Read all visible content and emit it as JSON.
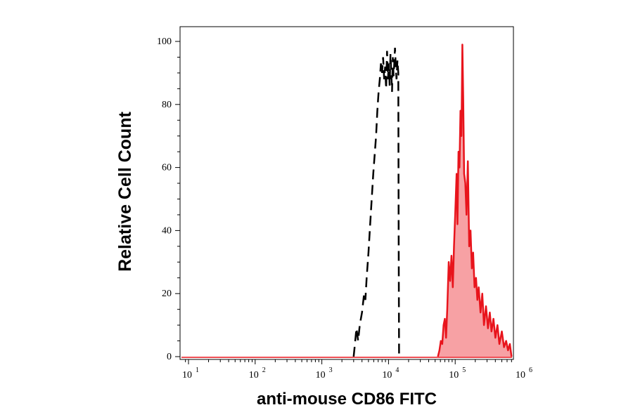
{
  "chart_data": {
    "type": "histogram",
    "title": "",
    "xlabel": "anti-mouse CD86 FITC",
    "ylabel": "Relative Cell Count",
    "x_scale": "log",
    "xlim": [
      10,
      1000000
    ],
    "ylim": [
      0,
      100
    ],
    "x_ticks": [
      {
        "base": "10",
        "exp": "1",
        "value": 10
      },
      {
        "base": "10",
        "exp": "2",
        "value": 100
      },
      {
        "base": "10",
        "exp": "3",
        "value": 1000
      },
      {
        "base": "10",
        "exp": "4",
        "value": 10000
      },
      {
        "base": "10",
        "exp": "5",
        "value": 100000
      },
      {
        "base": "10",
        "exp": "6",
        "value": 1000000
      }
    ],
    "y_ticks": [
      "0",
      "20",
      "40",
      "60",
      "80",
      "100"
    ],
    "y_tick_values": [
      0,
      20,
      40,
      60,
      80,
      100
    ],
    "grid": false,
    "series": [
      {
        "style": "dashed-outline",
        "color": "#000000",
        "points": [
          [
            3000,
            0
          ],
          [
            3100,
            3
          ],
          [
            3300,
            9
          ],
          [
            3500,
            5
          ],
          [
            3700,
            10
          ],
          [
            4000,
            14
          ],
          [
            4300,
            20
          ],
          [
            4500,
            18
          ],
          [
            4700,
            25
          ],
          [
            5000,
            33
          ],
          [
            5300,
            42
          ],
          [
            5600,
            50
          ],
          [
            5900,
            58
          ],
          [
            6200,
            64
          ],
          [
            6500,
            70
          ],
          [
            6800,
            78
          ],
          [
            7100,
            84
          ],
          [
            7400,
            88
          ],
          [
            7700,
            93
          ],
          [
            8000,
            90
          ],
          [
            8300,
            95
          ],
          [
            8600,
            88
          ],
          [
            8900,
            92
          ],
          [
            9200,
            85
          ],
          [
            9500,
            97
          ],
          [
            9800,
            88
          ],
          [
            10100,
            93
          ],
          [
            10400,
            86
          ],
          [
            10700,
            96
          ],
          [
            11000,
            90
          ],
          [
            11300,
            84
          ],
          [
            11600,
            95
          ],
          [
            11900,
            89
          ],
          [
            12200,
            93
          ],
          [
            12500,
            98
          ],
          [
            12900,
            91
          ],
          [
            13200,
            88
          ],
          [
            13600,
            94
          ],
          [
            14000,
            90
          ],
          [
            14200,
            40
          ],
          [
            14400,
            0
          ]
        ]
      },
      {
        "style": "filled",
        "color": "#e8141c",
        "fill": "#f7a1a4",
        "points": [
          [
            55000,
            0
          ],
          [
            58000,
            2
          ],
          [
            61000,
            5
          ],
          [
            64000,
            4
          ],
          [
            67000,
            10
          ],
          [
            70000,
            12
          ],
          [
            73000,
            6
          ],
          [
            76000,
            15
          ],
          [
            80000,
            30
          ],
          [
            84000,
            24
          ],
          [
            88000,
            32
          ],
          [
            92000,
            22
          ],
          [
            96000,
            35
          ],
          [
            100000,
            45
          ],
          [
            105000,
            58
          ],
          [
            108000,
            42
          ],
          [
            112000,
            65
          ],
          [
            116000,
            60
          ],
          [
            120000,
            78
          ],
          [
            124000,
            70
          ],
          [
            128000,
            99
          ],
          [
            132000,
            82
          ],
          [
            136000,
            58
          ],
          [
            142000,
            55
          ],
          [
            148000,
            45
          ],
          [
            155000,
            62
          ],
          [
            162000,
            35
          ],
          [
            170000,
            40
          ],
          [
            178000,
            28
          ],
          [
            186000,
            33
          ],
          [
            195000,
            22
          ],
          [
            205000,
            25
          ],
          [
            215000,
            18
          ],
          [
            225000,
            22
          ],
          [
            240000,
            14
          ],
          [
            255000,
            20
          ],
          [
            270000,
            10
          ],
          [
            290000,
            16
          ],
          [
            310000,
            9
          ],
          [
            330000,
            14
          ],
          [
            350000,
            8
          ],
          [
            375000,
            12
          ],
          [
            400000,
            6
          ],
          [
            430000,
            10
          ],
          [
            460000,
            4
          ],
          [
            500000,
            8
          ],
          [
            540000,
            3
          ],
          [
            580000,
            5
          ],
          [
            620000,
            2
          ],
          [
            660000,
            4
          ],
          [
            700000,
            0
          ]
        ]
      }
    ]
  }
}
